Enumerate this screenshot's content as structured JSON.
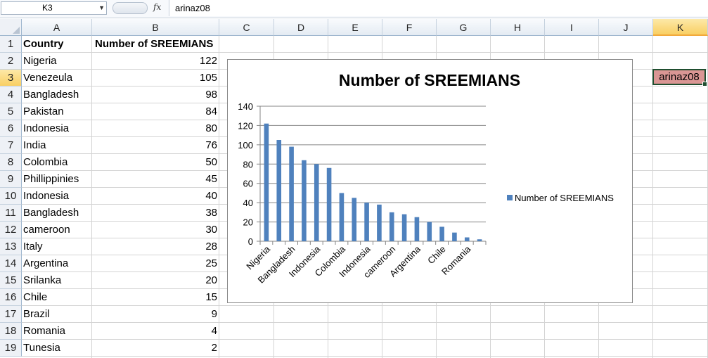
{
  "formula_bar": {
    "name_box": "K3",
    "fx_label": "fx",
    "formula": "arinaz08"
  },
  "columns": [
    "A",
    "B",
    "C",
    "D",
    "E",
    "F",
    "G",
    "H",
    "I",
    "J",
    "K"
  ],
  "selected_column": "K",
  "rows": [
    "1",
    "2",
    "3",
    "4",
    "5",
    "6",
    "7",
    "8",
    "9",
    "10",
    "11",
    "12",
    "13",
    "14",
    "15",
    "16",
    "17",
    "18",
    "19"
  ],
  "selected_row": "3",
  "sheet": {
    "header": {
      "country": "Country",
      "count": "Number of SREEMIANS"
    },
    "data": [
      {
        "country": "Nigeria",
        "count": "122"
      },
      {
        "country": "Venezeula",
        "count": "105"
      },
      {
        "country": "Bangladesh",
        "count": "98"
      },
      {
        "country": "Pakistan",
        "count": "84"
      },
      {
        "country": "Indonesia",
        "count": "80"
      },
      {
        "country": "India",
        "count": "76"
      },
      {
        "country": "Colombia",
        "count": "50"
      },
      {
        "country": "Phillippinies",
        "count": "45"
      },
      {
        "country": "Indonesia",
        "count": "40"
      },
      {
        "country": "Bangladesh",
        "count": "38"
      },
      {
        "country": "cameroon",
        "count": "30"
      },
      {
        "country": "Italy",
        "count": "28"
      },
      {
        "country": "Argentina",
        "count": "25"
      },
      {
        "country": "Srilanka",
        "count": "20"
      },
      {
        "country": "Chile",
        "count": "15"
      },
      {
        "country": "Brazil",
        "count": "9"
      },
      {
        "country": "Romania",
        "count": "4"
      },
      {
        "country": "Tunesia",
        "count": "2"
      }
    ],
    "k3_value": "arinaz08",
    "k3_fill": "#da9694"
  },
  "chart_data": {
    "type": "bar",
    "title": "Number of SREEMIANS",
    "categories": [
      "Nigeria",
      "Venezeula",
      "Bangladesh",
      "Pakistan",
      "Indonesia",
      "India",
      "Colombia",
      "Phillippinies",
      "Indonesia",
      "Bangladesh",
      "cameroon",
      "Italy",
      "Argentina",
      "Srilanka",
      "Chile",
      "Brazil",
      "Romania",
      "Tunesia"
    ],
    "tick_labels_shown": [
      "Nigeria",
      "Bangladesh",
      "Indonesia",
      "Colombia",
      "Indonesia",
      "cameroon",
      "Argentina",
      "Chile",
      "Romania"
    ],
    "series": [
      {
        "name": "Number of SREEMIANS",
        "values": [
          122,
          105,
          98,
          84,
          80,
          76,
          50,
          45,
          40,
          38,
          30,
          28,
          25,
          20,
          15,
          9,
          4,
          2
        ]
      }
    ],
    "ylim": [
      0,
      140
    ],
    "yticks": [
      0,
      20,
      40,
      60,
      80,
      100,
      120,
      140
    ],
    "grid": true,
    "legend": "right",
    "bar_color": "#4f81bd"
  }
}
